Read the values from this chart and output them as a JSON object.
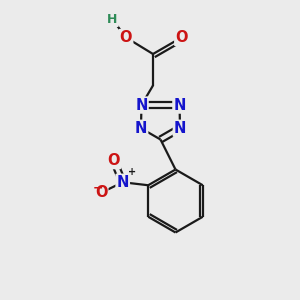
{
  "background_color": "#ebebeb",
  "bond_color": "#1a1a1a",
  "N_color": "#1414cc",
  "O_color": "#cc1414",
  "H_color": "#2e8b57",
  "bond_width": 1.6,
  "font_size_atom": 10.5,
  "xlim": [
    0,
    10
  ],
  "ylim": [
    0,
    10
  ]
}
